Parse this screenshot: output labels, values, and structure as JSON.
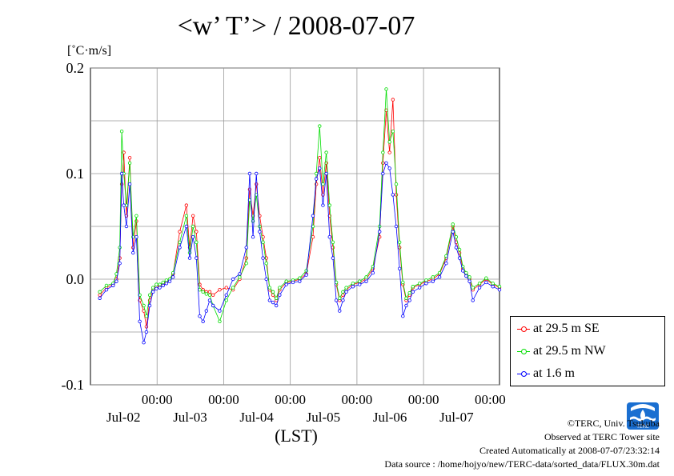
{
  "chart_data": {
    "type": "line",
    "title": "<w’ T’> / 2008-07-07",
    "ylabel": "[˚C·m/s]",
    "xlabel": "(LST)",
    "ylim": [
      -0.1,
      0.2
    ],
    "xlim_days": [
      "Jul-01",
      "Jul-07"
    ],
    "yticks": [
      "0.2",
      "0.1",
      "0.0",
      "-0.1"
    ],
    "xticks": [
      {
        "time": "00:00",
        "date": "Jul-02"
      },
      {
        "time": "00:00",
        "date": "Jul-03"
      },
      {
        "time": "00:00",
        "date": "Jul-04"
      },
      {
        "time": "00:00",
        "date": "Jul-05"
      },
      {
        "time": "00:00",
        "date": "Jul-06"
      },
      {
        "time": "00:00",
        "date": "Jul-07"
      }
    ],
    "grid": true,
    "legend_position": "right",
    "series": [
      {
        "name": "at 29.5 m SE",
        "color": "#ff0000",
        "x_days": [
          0.0,
          0.1,
          0.2,
          0.25,
          0.3,
          0.33,
          0.36,
          0.4,
          0.45,
          0.5,
          0.55,
          0.6,
          0.66,
          0.7,
          0.75,
          0.8,
          0.85,
          0.9,
          0.95,
          1.0,
          1.05,
          1.1,
          1.2,
          1.3,
          1.35,
          1.4,
          1.45,
          1.5,
          1.55,
          1.6,
          1.65,
          1.7,
          1.8,
          1.9,
          2.0,
          2.1,
          2.2,
          2.25,
          2.3,
          2.35,
          2.4,
          2.45,
          2.5,
          2.55,
          2.6,
          2.65,
          2.7,
          2.8,
          2.9,
          3.0,
          3.1,
          3.2,
          3.25,
          3.3,
          3.35,
          3.4,
          3.45,
          3.5,
          3.55,
          3.6,
          3.65,
          3.7,
          3.8,
          3.9,
          4.0,
          4.1,
          4.2,
          4.25,
          4.3,
          4.35,
          4.4,
          4.45,
          4.5,
          4.55,
          4.6,
          4.65,
          4.7,
          4.8,
          4.9,
          5.0,
          5.1,
          5.2,
          5.3,
          5.35,
          5.4,
          5.45,
          5.5,
          5.55,
          5.6,
          5.7,
          5.8,
          5.9,
          6.0
        ],
        "y": [
          -0.015,
          -0.008,
          -0.005,
          0.0,
          0.02,
          0.09,
          0.12,
          0.06,
          0.115,
          0.03,
          0.055,
          -0.02,
          -0.03,
          -0.045,
          -0.02,
          -0.01,
          -0.007,
          -0.006,
          -0.004,
          -0.002,
          0.0,
          0.005,
          0.045,
          0.07,
          0.03,
          0.06,
          0.045,
          -0.005,
          -0.01,
          -0.012,
          -0.012,
          -0.015,
          -0.01,
          -0.008,
          -0.01,
          0.0,
          0.02,
          0.085,
          0.06,
          0.09,
          0.06,
          0.04,
          0.02,
          -0.01,
          -0.015,
          -0.02,
          -0.01,
          -0.003,
          -0.002,
          0.0,
          0.005,
          0.04,
          0.09,
          0.115,
          0.08,
          0.11,
          0.06,
          0.03,
          -0.005,
          -0.02,
          -0.015,
          -0.01,
          -0.005,
          -0.003,
          0.0,
          0.01,
          0.04,
          0.11,
          0.16,
          0.12,
          0.17,
          0.08,
          0.03,
          -0.005,
          -0.02,
          -0.015,
          -0.008,
          -0.005,
          -0.002,
          0.0,
          0.005,
          0.02,
          0.05,
          0.035,
          0.025,
          0.01,
          0.005,
          0.0,
          -0.01,
          -0.005,
          0.0,
          -0.005,
          -0.008
        ]
      },
      {
        "name": "at 29.5 m NW",
        "color": "#00dd00",
        "x_days": [
          0.0,
          0.1,
          0.2,
          0.25,
          0.3,
          0.33,
          0.36,
          0.4,
          0.45,
          0.5,
          0.55,
          0.6,
          0.66,
          0.7,
          0.75,
          0.8,
          0.85,
          0.9,
          0.95,
          1.0,
          1.05,
          1.1,
          1.2,
          1.3,
          1.35,
          1.4,
          1.45,
          1.5,
          1.55,
          1.6,
          1.65,
          1.7,
          1.8,
          1.9,
          2.0,
          2.1,
          2.2,
          2.25,
          2.3,
          2.35,
          2.4,
          2.45,
          2.5,
          2.55,
          2.6,
          2.65,
          2.7,
          2.8,
          2.9,
          3.0,
          3.1,
          3.2,
          3.25,
          3.3,
          3.35,
          3.4,
          3.45,
          3.5,
          3.55,
          3.6,
          3.65,
          3.7,
          3.8,
          3.9,
          4.0,
          4.1,
          4.2,
          4.25,
          4.3,
          4.35,
          4.4,
          4.45,
          4.5,
          4.55,
          4.6,
          4.65,
          4.7,
          4.8,
          4.9,
          5.0,
          5.1,
          5.2,
          5.3,
          5.35,
          5.4,
          5.45,
          5.5,
          5.55,
          5.6,
          5.7,
          5.8,
          5.9,
          6.0
        ],
        "y": [
          -0.012,
          -0.006,
          -0.004,
          0.005,
          0.03,
          0.14,
          0.1,
          0.07,
          0.11,
          0.04,
          0.06,
          -0.015,
          -0.025,
          -0.035,
          -0.015,
          -0.008,
          -0.005,
          -0.005,
          -0.003,
          -0.001,
          0.0,
          0.006,
          0.035,
          0.06,
          0.025,
          0.05,
          0.035,
          -0.01,
          -0.012,
          -0.014,
          -0.015,
          -0.025,
          -0.04,
          -0.02,
          -0.008,
          0.002,
          0.015,
          0.075,
          0.055,
          0.08,
          0.05,
          0.035,
          0.015,
          -0.008,
          -0.012,
          -0.018,
          -0.008,
          -0.002,
          -0.001,
          0.001,
          0.008,
          0.05,
          0.1,
          0.145,
          0.09,
          0.12,
          0.07,
          0.035,
          -0.003,
          -0.018,
          -0.012,
          -0.008,
          -0.004,
          -0.002,
          0.002,
          0.012,
          0.05,
          0.12,
          0.18,
          0.13,
          0.14,
          0.09,
          0.035,
          -0.003,
          -0.018,
          -0.013,
          -0.007,
          -0.004,
          -0.001,
          0.002,
          0.006,
          0.022,
          0.052,
          0.04,
          0.028,
          0.012,
          0.006,
          0.002,
          -0.008,
          -0.004,
          0.001,
          -0.004,
          -0.007
        ]
      },
      {
        "name": "at 1.6 m",
        "color": "#0000ff",
        "x_days": [
          0.0,
          0.1,
          0.2,
          0.25,
          0.3,
          0.33,
          0.36,
          0.4,
          0.45,
          0.5,
          0.55,
          0.6,
          0.66,
          0.7,
          0.75,
          0.8,
          0.85,
          0.9,
          0.95,
          1.0,
          1.05,
          1.1,
          1.2,
          1.3,
          1.35,
          1.4,
          1.45,
          1.5,
          1.55,
          1.6,
          1.65,
          1.7,
          1.8,
          1.9,
          2.0,
          2.1,
          2.2,
          2.25,
          2.3,
          2.35,
          2.4,
          2.45,
          2.5,
          2.55,
          2.6,
          2.65,
          2.7,
          2.8,
          2.9,
          3.0,
          3.1,
          3.2,
          3.25,
          3.3,
          3.35,
          3.4,
          3.45,
          3.5,
          3.55,
          3.6,
          3.65,
          3.7,
          3.8,
          3.9,
          4.0,
          4.1,
          4.2,
          4.25,
          4.3,
          4.35,
          4.4,
          4.45,
          4.5,
          4.55,
          4.6,
          4.65,
          4.7,
          4.8,
          4.9,
          5.0,
          5.1,
          5.2,
          5.3,
          5.35,
          5.4,
          5.45,
          5.5,
          5.55,
          5.6,
          5.7,
          5.8,
          5.9,
          6.0
        ],
        "y": [
          -0.018,
          -0.01,
          -0.006,
          -0.002,
          0.015,
          0.1,
          0.07,
          0.05,
          0.09,
          0.025,
          0.04,
          -0.04,
          -0.06,
          -0.05,
          -0.025,
          -0.012,
          -0.009,
          -0.008,
          -0.006,
          -0.004,
          -0.002,
          0.002,
          0.03,
          0.05,
          0.02,
          0.04,
          0.02,
          -0.035,
          -0.04,
          -0.03,
          -0.02,
          -0.025,
          -0.03,
          -0.015,
          0.0,
          0.005,
          0.03,
          0.1,
          0.04,
          0.1,
          0.045,
          0.02,
          0.0,
          -0.02,
          -0.022,
          -0.025,
          -0.015,
          -0.005,
          -0.003,
          -0.002,
          0.004,
          0.06,
          0.095,
          0.105,
          0.07,
          0.1,
          0.04,
          0.02,
          -0.02,
          -0.03,
          -0.02,
          -0.012,
          -0.007,
          -0.005,
          -0.002,
          0.006,
          0.045,
          0.1,
          0.11,
          0.105,
          0.08,
          0.05,
          0.01,
          -0.035,
          -0.025,
          -0.02,
          -0.012,
          -0.008,
          -0.004,
          -0.002,
          0.002,
          0.015,
          0.045,
          0.03,
          0.02,
          0.008,
          0.003,
          -0.002,
          -0.02,
          -0.008,
          -0.003,
          -0.007,
          -0.01
        ]
      }
    ]
  },
  "footer": {
    "copyright": "©TERC, Univ. Tsukuba",
    "observed": "Observed at TERC Tower site",
    "created": "Created Automatically at 2008-07-07/23:32:14",
    "source": "Data source : /home/hojyo/new/TERC-data/sorted_data/FLUX.30m.dat",
    "logo_text": "TERC"
  }
}
